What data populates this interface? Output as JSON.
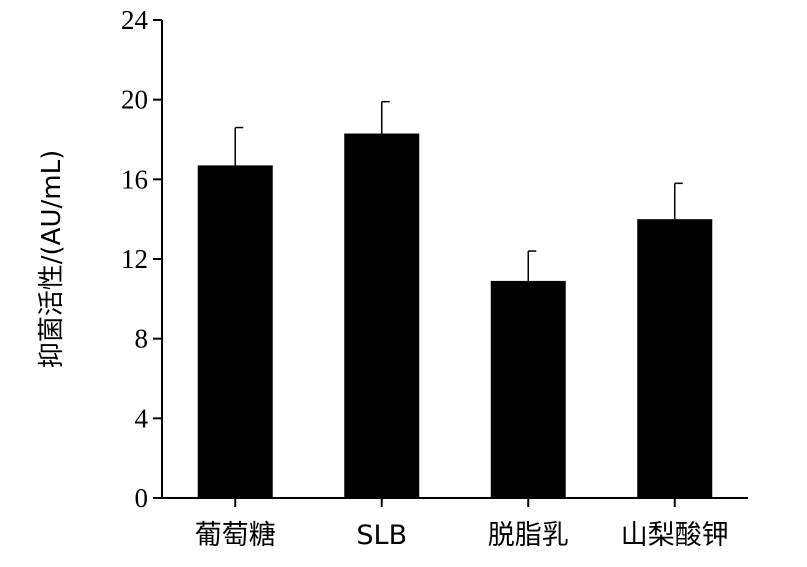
{
  "chart_data": {
    "type": "bar",
    "categories": [
      "葡萄糖",
      "SLB",
      "脱脂乳",
      "山梨酸钾"
    ],
    "values": [
      16.7,
      18.3,
      10.9,
      14.0
    ],
    "error": [
      1.9,
      1.6,
      1.5,
      1.8
    ],
    "xlabel": "",
    "ylabel": "抑菌活性/(AU/mL)",
    "ylim": [
      0,
      24
    ],
    "yticks": [
      0,
      4,
      8,
      12,
      16,
      20,
      24
    ],
    "grid": false,
    "bar_color": "#000000"
  }
}
